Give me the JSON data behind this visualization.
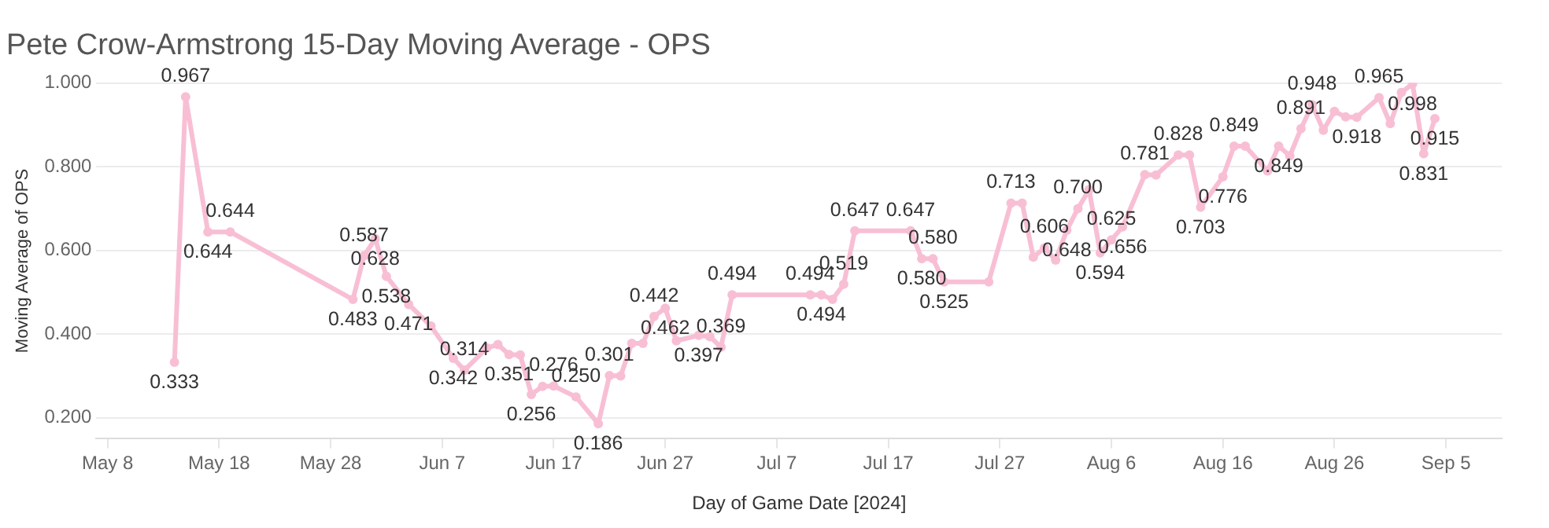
{
  "chart_data": {
    "type": "line",
    "title": "Pete Crow-Armstrong 15-Day Moving Average - OPS",
    "xlabel": "Day of Game Date [2024]",
    "ylabel": "Moving Average of OPS",
    "x": [
      "2024-05-14",
      "2024-05-15",
      "2024-05-17",
      "2024-05-19",
      "2024-05-30",
      "2024-05-31",
      "2024-06-01",
      "2024-06-02",
      "2024-06-04",
      "2024-06-06",
      "2024-06-08",
      "2024-06-09",
      "2024-06-11",
      "2024-06-12",
      "2024-06-13",
      "2024-06-14",
      "2024-06-15",
      "2024-06-16",
      "2024-06-17",
      "2024-06-19",
      "2024-06-21",
      "2024-06-22",
      "2024-06-23",
      "2024-06-24",
      "2024-06-25",
      "2024-06-26",
      "2024-06-27",
      "2024-06-28",
      "2024-06-30",
      "2024-07-01",
      "2024-07-02",
      "2024-07-03",
      "2024-07-10",
      "2024-07-11",
      "2024-07-12",
      "2024-07-13",
      "2024-07-14",
      "2024-07-19",
      "2024-07-20",
      "2024-07-21",
      "2024-07-22",
      "2024-07-26",
      "2024-07-28",
      "2024-07-29",
      "2024-07-30",
      "2024-07-31",
      "2024-08-01",
      "2024-08-02",
      "2024-08-03",
      "2024-08-04",
      "2024-08-05",
      "2024-08-06",
      "2024-08-07",
      "2024-08-09",
      "2024-08-10",
      "2024-08-12",
      "2024-08-13",
      "2024-08-14",
      "2024-08-16",
      "2024-08-17",
      "2024-08-18",
      "2024-08-20",
      "2024-08-21",
      "2024-08-22",
      "2024-08-23",
      "2024-08-24",
      "2024-08-25",
      "2024-08-26",
      "2024-08-27",
      "2024-08-28",
      "2024-08-30",
      "2024-08-31",
      "2024-09-01",
      "2024-09-02",
      "2024-09-03",
      "2024-09-04"
    ],
    "series": [
      {
        "color": "#f8bfd4",
        "values": [
          0.333,
          0.967,
          0.644,
          0.644,
          0.483,
          0.587,
          0.628,
          0.538,
          0.471,
          0.419,
          0.342,
          0.314,
          0.367,
          0.375,
          0.351,
          0.35,
          0.256,
          0.275,
          0.276,
          0.25,
          0.186,
          0.301,
          0.3,
          0.378,
          0.378,
          0.442,
          0.462,
          0.384,
          0.397,
          0.394,
          0.369,
          0.494,
          0.494,
          0.494,
          0.483,
          0.519,
          0.647,
          0.647,
          0.58,
          0.58,
          0.525,
          0.525,
          0.713,
          0.713,
          0.584,
          0.606,
          0.577,
          0.648,
          0.7,
          0.745,
          0.594,
          0.625,
          0.656,
          0.781,
          0.78,
          0.828,
          0.828,
          0.703,
          0.776,
          0.849,
          0.849,
          0.79,
          0.849,
          0.826,
          0.891,
          0.948,
          0.887,
          0.932,
          0.919,
          0.918,
          0.965,
          0.903,
          0.977,
          0.998,
          0.831,
          0.915
        ],
        "value_labels": [
          "0.333",
          "0.967",
          "0.644",
          "0.644",
          "0.483",
          "0.587",
          "0.628",
          "0.538",
          "0.471",
          null,
          "0.342",
          "0.314",
          null,
          null,
          "0.351",
          null,
          "0.256",
          null,
          "0.276",
          "0.250",
          "0.186",
          "0.301",
          null,
          null,
          null,
          "0.442",
          "0.462",
          null,
          "0.397",
          null,
          "0.369",
          "0.494",
          "0.494",
          "0.494",
          null,
          "0.519",
          "0.647",
          "0.647",
          "0.580",
          "0.580",
          "0.525",
          null,
          "0.713",
          null,
          null,
          "0.606",
          null,
          "0.648",
          "0.700",
          null,
          "0.594",
          "0.625",
          "0.656",
          "0.781",
          null,
          "0.828",
          null,
          "0.703",
          "0.776",
          "0.849",
          null,
          null,
          "0.849",
          null,
          "0.891",
          "0.948",
          null,
          null,
          null,
          "0.918",
          "0.965",
          null,
          null,
          "0.998",
          "0.831",
          "0.915"
        ]
      }
    ],
    "xlim": [
      "2024-05-07",
      "2024-09-10"
    ],
    "xticks": [
      {
        "value": "2024-05-08",
        "label": "May 8"
      },
      {
        "value": "2024-05-18",
        "label": "May 18"
      },
      {
        "value": "2024-05-28",
        "label": "May 28"
      },
      {
        "value": "2024-06-07",
        "label": "Jun 7"
      },
      {
        "value": "2024-06-17",
        "label": "Jun 17"
      },
      {
        "value": "2024-06-27",
        "label": "Jun 27"
      },
      {
        "value": "2024-07-07",
        "label": "Jul 7"
      },
      {
        "value": "2024-07-17",
        "label": "Jul 17"
      },
      {
        "value": "2024-07-27",
        "label": "Jul 27"
      },
      {
        "value": "2024-08-06",
        "label": "Aug 6"
      },
      {
        "value": "2024-08-16",
        "label": "Aug 16"
      },
      {
        "value": "2024-08-26",
        "label": "Aug 26"
      },
      {
        "value": "2024-09-05",
        "label": "Sep 5"
      }
    ],
    "ylim": [
      0.15,
      1.0
    ],
    "yticks": [
      {
        "value": 0.2,
        "label": "0.200"
      },
      {
        "value": 0.4,
        "label": "0.400"
      },
      {
        "value": 0.6,
        "label": "0.600"
      },
      {
        "value": 0.8,
        "label": "0.800"
      },
      {
        "value": 1.0,
        "label": "1.000"
      }
    ],
    "grid": "y",
    "legend": false,
    "marker": "circle",
    "line_style": "solid"
  }
}
